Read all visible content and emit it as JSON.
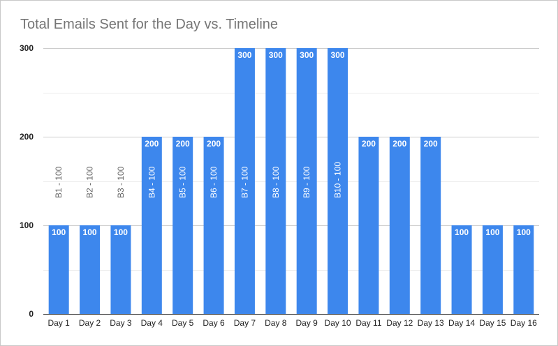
{
  "chart_data": {
    "type": "bar",
    "title": "Total Emails Sent for the Day vs. Timeline",
    "xlabel": "",
    "ylabel": "",
    "ylim": [
      0,
      300
    ],
    "yticks": [
      0,
      100,
      200,
      300
    ],
    "grid": true,
    "legend": "none",
    "bar_color": "#3d87ed",
    "categories": [
      "Day 1",
      "Day 2",
      "Day 3",
      "Day 4",
      "Day 5",
      "Day 6",
      "Day 7",
      "Day 8",
      "Day 9",
      "Day 10",
      "Day 11",
      "Day 12",
      "Day 13",
      "Day 14",
      "Day 15",
      "Day 16"
    ],
    "values": [
      100,
      100,
      100,
      200,
      200,
      200,
      300,
      300,
      300,
      300,
      200,
      200,
      200,
      100,
      100,
      100
    ],
    "data_labels": [
      "100",
      "100",
      "100",
      "200",
      "200",
      "200",
      "300",
      "300",
      "300",
      "300",
      "200",
      "200",
      "200",
      "100",
      "100",
      "100"
    ],
    "annotations": [
      "B1 - 100",
      "B2 - 100",
      "B3 - 100",
      "B4 - 100",
      "B5 - 100",
      "B6 - 100",
      "B7 - 100",
      "B8 - 100",
      "B9 - 100",
      "B10 - 100",
      "",
      "",
      "",
      "",
      "",
      ""
    ]
  }
}
